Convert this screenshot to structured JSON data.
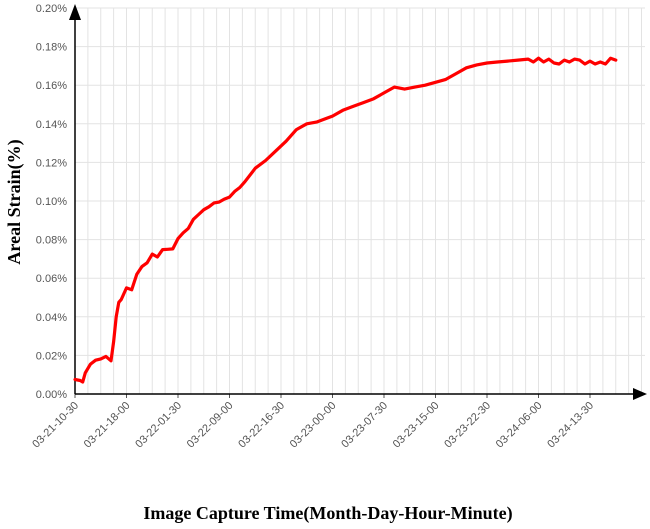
{
  "chart_data": {
    "type": "line",
    "title": "",
    "xlabel": "Image Capture Time(Month-Day-Hour-Minute)",
    "ylabel": "Areal Strain(%)",
    "x_tick_labels": [
      "03-21-10-30",
      "03-21-18-00",
      "03-22-01-30",
      "03-22-09-00",
      "03-22-16-30",
      "03-23-00-00",
      "03-23-07-30",
      "03-23-15-00",
      "03-23-22-30",
      "03-24-06-00",
      "03-24-13-30"
    ],
    "y_tick_labels": [
      "0.00%",
      "0.02%",
      "0.04%",
      "0.06%",
      "0.08%",
      "0.10%",
      "0.12%",
      "0.14%",
      "0.16%",
      "0.18%",
      "0.20%"
    ],
    "ylim": [
      0,
      0.2
    ],
    "y_unit": "%",
    "xlim_index": [
      0,
      11.2
    ],
    "grid": true,
    "line_color": "#ff0000",
    "series": [
      {
        "x": [
          0,
          0.1,
          0.15,
          0.2,
          0.3,
          0.4,
          0.5,
          0.6,
          0.7,
          0.75,
          0.8,
          0.85,
          0.9,
          1.0,
          1.1,
          1.15,
          1.2,
          1.3,
          1.4,
          1.5,
          1.6,
          1.7,
          1.8,
          1.9,
          2.0,
          2.1,
          2.2,
          2.3,
          2.4,
          2.5,
          2.6,
          2.7,
          2.8,
          2.9,
          3.0,
          3.1,
          3.2,
          3.3,
          3.5,
          3.7,
          3.9,
          4.1,
          4.3,
          4.5,
          4.7,
          4.9,
          5.0,
          5.2,
          5.4,
          5.6,
          5.8,
          6.0,
          6.2,
          6.4,
          6.6,
          6.8,
          7.0,
          7.2,
          7.4,
          7.6,
          7.8,
          8.0,
          8.2,
          8.4,
          8.6,
          8.8,
          8.9,
          9.0,
          9.1,
          9.2,
          9.3,
          9.4,
          9.5,
          9.6,
          9.7,
          9.8,
          9.9,
          10.0,
          10.1,
          10.2,
          10.3,
          10.4,
          10.5
        ],
        "y": [
          0.0075,
          0.007,
          0.0062,
          0.011,
          0.0155,
          0.0175,
          0.0182,
          0.0195,
          0.0172,
          0.027,
          0.04,
          0.0475,
          0.049,
          0.055,
          0.054,
          0.058,
          0.062,
          0.066,
          0.068,
          0.0725,
          0.071,
          0.0748,
          0.075,
          0.0752,
          0.0805,
          0.0835,
          0.0858,
          0.0905,
          0.093,
          0.0955,
          0.097,
          0.099,
          0.0995,
          0.101,
          0.102,
          0.105,
          0.107,
          0.11,
          0.117,
          0.121,
          0.126,
          0.131,
          0.137,
          0.14,
          0.141,
          0.143,
          0.144,
          0.147,
          0.149,
          0.151,
          0.153,
          0.156,
          0.159,
          0.158,
          0.159,
          0.16,
          0.1615,
          0.163,
          0.166,
          0.169,
          0.1705,
          0.1715,
          0.172,
          0.1725,
          0.173,
          0.1735,
          0.172,
          0.174,
          0.172,
          0.1735,
          0.1715,
          0.171,
          0.173,
          0.172,
          0.1735,
          0.173,
          0.171,
          0.1725,
          0.171,
          0.172,
          0.171,
          0.174,
          0.173
        ]
      }
    ]
  }
}
